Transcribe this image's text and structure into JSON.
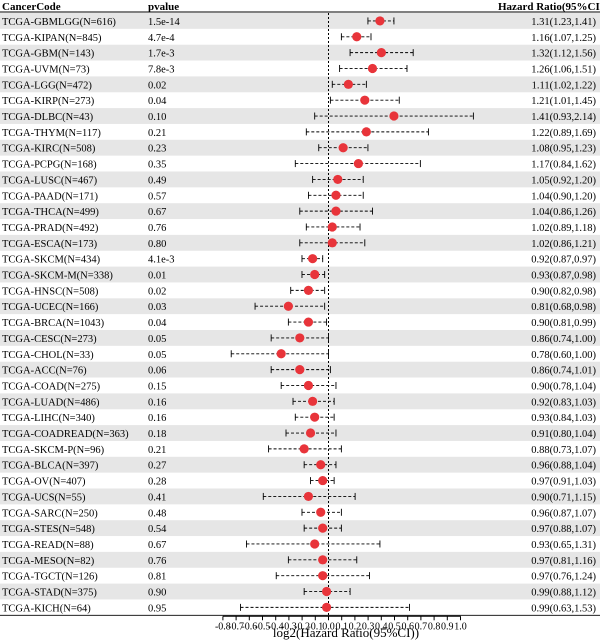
{
  "chart_data": {
    "type": "forest",
    "columns": {
      "code": "CancerCode",
      "pvalue": "pvalue",
      "hr": "Hazard Ratio(95%CI)"
    },
    "xlabel": "log2(Hazard Ratio(95%CI))",
    "xlim": [
      -0.8,
      1.1
    ],
    "xticks": [
      "-0.8",
      "-0.7",
      "-0.6",
      "-0.5",
      "-0.4",
      "-0.3",
      "-0.2",
      "-0.1",
      "0.0",
      "0.1",
      "0.2",
      "0.3",
      "0.4",
      "0.5",
      "0.6",
      "0.7",
      "0.8",
      "0.9",
      "1.0"
    ],
    "reference_line": 0,
    "point_color": "#e8343a",
    "stripe_color": "#e6e6e6",
    "rows": [
      {
        "code": "TCGA-GBMLGG(N=616)",
        "pvalue": "1.5e-14",
        "hr_text": "1.31(1.23,1.41)",
        "hr": 1.31,
        "lo": 1.23,
        "hi": 1.41
      },
      {
        "code": "TCGA-KIPAN(N=845)",
        "pvalue": "4.7e-4",
        "hr_text": "1.16(1.07,1.25)",
        "hr": 1.16,
        "lo": 1.07,
        "hi": 1.25
      },
      {
        "code": "TCGA-GBM(N=143)",
        "pvalue": "1.7e-3",
        "hr_text": "1.32(1.12,1.56)",
        "hr": 1.32,
        "lo": 1.12,
        "hi": 1.56
      },
      {
        "code": "TCGA-UVM(N=73)",
        "pvalue": "7.8e-3",
        "hr_text": "1.26(1.06,1.51)",
        "hr": 1.26,
        "lo": 1.06,
        "hi": 1.51
      },
      {
        "code": "TCGA-LGG(N=472)",
        "pvalue": "0.02",
        "hr_text": "1.11(1.02,1.22)",
        "hr": 1.11,
        "lo": 1.02,
        "hi": 1.22
      },
      {
        "code": "TCGA-KIRP(N=273)",
        "pvalue": "0.04",
        "hr_text": "1.21(1.01,1.45)",
        "hr": 1.21,
        "lo": 1.01,
        "hi": 1.45
      },
      {
        "code": "TCGA-DLBC(N=43)",
        "pvalue": "0.10",
        "hr_text": "1.41(0.93,2.14)",
        "hr": 1.41,
        "lo": 0.93,
        "hi": 2.14
      },
      {
        "code": "TCGA-THYM(N=117)",
        "pvalue": "0.21",
        "hr_text": "1.22(0.89,1.69)",
        "hr": 1.22,
        "lo": 0.89,
        "hi": 1.69
      },
      {
        "code": "TCGA-KIRC(N=508)",
        "pvalue": "0.23",
        "hr_text": "1.08(0.95,1.23)",
        "hr": 1.08,
        "lo": 0.95,
        "hi": 1.23
      },
      {
        "code": "TCGA-PCPG(N=168)",
        "pvalue": "0.35",
        "hr_text": "1.17(0.84,1.62)",
        "hr": 1.17,
        "lo": 0.84,
        "hi": 1.62
      },
      {
        "code": "TCGA-LUSC(N=467)",
        "pvalue": "0.49",
        "hr_text": "1.05(0.92,1.20)",
        "hr": 1.05,
        "lo": 0.92,
        "hi": 1.2
      },
      {
        "code": "TCGA-PAAD(N=171)",
        "pvalue": "0.57",
        "hr_text": "1.04(0.90,1.20)",
        "hr": 1.04,
        "lo": 0.9,
        "hi": 1.2
      },
      {
        "code": "TCGA-THCA(N=499)",
        "pvalue": "0.67",
        "hr_text": "1.04(0.86,1.26)",
        "hr": 1.04,
        "lo": 0.86,
        "hi": 1.26
      },
      {
        "code": "TCGA-PRAD(N=492)",
        "pvalue": "0.76",
        "hr_text": "1.02(0.89,1.18)",
        "hr": 1.02,
        "lo": 0.89,
        "hi": 1.18
      },
      {
        "code": "TCGA-ESCA(N=173)",
        "pvalue": "0.80",
        "hr_text": "1.02(0.86,1.21)",
        "hr": 1.02,
        "lo": 0.86,
        "hi": 1.21
      },
      {
        "code": "TCGA-SKCM(N=434)",
        "pvalue": "4.1e-3",
        "hr_text": "0.92(0.87,0.97)",
        "hr": 0.92,
        "lo": 0.87,
        "hi": 0.97
      },
      {
        "code": "TCGA-SKCM-M(N=338)",
        "pvalue": "0.01",
        "hr_text": "0.93(0.87,0.98)",
        "hr": 0.93,
        "lo": 0.87,
        "hi": 0.98
      },
      {
        "code": "TCGA-HNSC(N=508)",
        "pvalue": "0.02",
        "hr_text": "0.90(0.82,0.98)",
        "hr": 0.9,
        "lo": 0.82,
        "hi": 0.98
      },
      {
        "code": "TCGA-UCEC(N=166)",
        "pvalue": "0.03",
        "hr_text": "0.81(0.68,0.98)",
        "hr": 0.81,
        "lo": 0.68,
        "hi": 0.98
      },
      {
        "code": "TCGA-BRCA(N=1043)",
        "pvalue": "0.04",
        "hr_text": "0.90(0.81,0.99)",
        "hr": 0.9,
        "lo": 0.81,
        "hi": 0.99
      },
      {
        "code": "TCGA-CESC(N=273)",
        "pvalue": "0.05",
        "hr_text": "0.86(0.74,1.00)",
        "hr": 0.86,
        "lo": 0.74,
        "hi": 1.0
      },
      {
        "code": "TCGA-CHOL(N=33)",
        "pvalue": "0.05",
        "hr_text": "0.78(0.60,1.00)",
        "hr": 0.78,
        "lo": 0.6,
        "hi": 1.0
      },
      {
        "code": "TCGA-ACC(N=76)",
        "pvalue": "0.06",
        "hr_text": "0.86(0.74,1.01)",
        "hr": 0.86,
        "lo": 0.74,
        "hi": 1.01
      },
      {
        "code": "TCGA-COAD(N=275)",
        "pvalue": "0.15",
        "hr_text": "0.90(0.78,1.04)",
        "hr": 0.9,
        "lo": 0.78,
        "hi": 1.04
      },
      {
        "code": "TCGA-LUAD(N=486)",
        "pvalue": "0.16",
        "hr_text": "0.92(0.83,1.03)",
        "hr": 0.92,
        "lo": 0.83,
        "hi": 1.03
      },
      {
        "code": "TCGA-LIHC(N=340)",
        "pvalue": "0.16",
        "hr_text": "0.93(0.84,1.03)",
        "hr": 0.93,
        "lo": 0.84,
        "hi": 1.03
      },
      {
        "code": "TCGA-COADREAD(N=363)",
        "pvalue": "0.18",
        "hr_text": "0.91(0.80,1.04)",
        "hr": 0.91,
        "lo": 0.8,
        "hi": 1.04
      },
      {
        "code": "TCGA-SKCM-P(N=96)",
        "pvalue": "0.21",
        "hr_text": "0.88(0.73,1.07)",
        "hr": 0.88,
        "lo": 0.73,
        "hi": 1.07
      },
      {
        "code": "TCGA-BLCA(N=397)",
        "pvalue": "0.27",
        "hr_text": "0.96(0.88,1.04)",
        "hr": 0.96,
        "lo": 0.88,
        "hi": 1.04
      },
      {
        "code": "TCGA-OV(N=407)",
        "pvalue": "0.28",
        "hr_text": "0.97(0.91,1.03)",
        "hr": 0.97,
        "lo": 0.91,
        "hi": 1.03
      },
      {
        "code": "TCGA-UCS(N=55)",
        "pvalue": "0.41",
        "hr_text": "0.90(0.71,1.15)",
        "hr": 0.9,
        "lo": 0.71,
        "hi": 1.15
      },
      {
        "code": "TCGA-SARC(N=250)",
        "pvalue": "0.48",
        "hr_text": "0.96(0.87,1.07)",
        "hr": 0.96,
        "lo": 0.87,
        "hi": 1.07
      },
      {
        "code": "TCGA-STES(N=548)",
        "pvalue": "0.54",
        "hr_text": "0.97(0.88,1.07)",
        "hr": 0.97,
        "lo": 0.88,
        "hi": 1.07
      },
      {
        "code": "TCGA-READ(N=88)",
        "pvalue": "0.67",
        "hr_text": "0.93(0.65,1.31)",
        "hr": 0.93,
        "lo": 0.65,
        "hi": 1.31
      },
      {
        "code": "TCGA-MESO(N=82)",
        "pvalue": "0.76",
        "hr_text": "0.97(0.81,1.16)",
        "hr": 0.97,
        "lo": 0.81,
        "hi": 1.16
      },
      {
        "code": "TCGA-TGCT(N=126)",
        "pvalue": "0.81",
        "hr_text": "0.97(0.76,1.24)",
        "hr": 0.97,
        "lo": 0.76,
        "hi": 1.24
      },
      {
        "code": "TCGA-STAD(N=375)",
        "pvalue": "0.90",
        "hr_text": "0.99(0.88,1.12)",
        "hr": 0.99,
        "lo": 0.88,
        "hi": 1.12
      },
      {
        "code": "TCGA-KICH(N=64)",
        "pvalue": "0.95",
        "hr_text": "0.99(0.63,1.53)",
        "hr": 0.99,
        "lo": 0.63,
        "hi": 1.53
      }
    ]
  }
}
